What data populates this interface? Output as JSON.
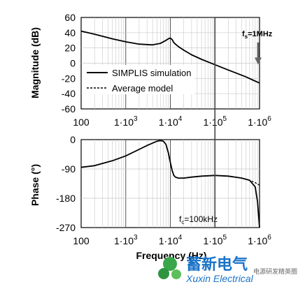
{
  "chart_data": [
    {
      "type": "line",
      "ylabel": "Magnitude (dB)",
      "xscale": "log",
      "xlim": [
        100,
        1000000
      ],
      "ylim": [
        -60,
        60
      ],
      "yticks": [
        "60",
        "40",
        "20",
        "0",
        "-20",
        "-40",
        "-60"
      ],
      "xticks": [
        {
          "base": "100",
          "exp": ""
        },
        {
          "base": "1·10",
          "exp": "3"
        },
        {
          "base": "1·10",
          "exp": "4"
        },
        {
          "base": "1·10",
          "exp": "5"
        },
        {
          "base": "1·10",
          "exp": "6"
        }
      ],
      "grid": true,
      "legend": "top-right",
      "series": [
        {
          "name": "SIMPLIS simulation",
          "x": [
            100,
            200,
            500,
            1000,
            2000,
            4000,
            6000,
            8000,
            9000,
            10000,
            11000,
            12000,
            13000,
            15000,
            20000,
            30000,
            50000,
            100000,
            200000,
            500000,
            700000,
            1000000
          ],
          "y": [
            42,
            38,
            32,
            28,
            25,
            24,
            26,
            30,
            32,
            33,
            31,
            27,
            25,
            22,
            17,
            11,
            5,
            -2,
            -9,
            -18,
            -22,
            -26
          ]
        },
        {
          "name": "Average model",
          "x": [
            100,
            200,
            500,
            1000,
            2000,
            4000,
            6000,
            8000,
            9000,
            10000,
            11000,
            12000,
            13000,
            15000,
            20000,
            30000,
            50000,
            100000,
            200000,
            500000,
            700000,
            1000000
          ],
          "y": [
            42,
            38,
            32,
            28,
            25,
            24,
            26,
            30,
            32,
            33,
            31,
            27,
            25,
            22,
            17,
            11,
            5,
            -2,
            -9,
            -18,
            -22,
            -26
          ]
        }
      ],
      "annotation": {
        "label_main": "f",
        "label_sub": "s",
        "label_tail": "=1MHz",
        "x": 1000000,
        "y_from": 40,
        "y_to": 0
      }
    },
    {
      "type": "line",
      "xlabel": "Frequency (Hz)",
      "ylabel": "Phase (°)",
      "xscale": "log",
      "xlim": [
        100,
        1000000
      ],
      "ylim": [
        -270,
        0
      ],
      "yticks": [
        "0",
        "-90",
        "-180",
        "-270"
      ],
      "xticks": [
        {
          "base": "100",
          "exp": ""
        },
        {
          "base": "1·10",
          "exp": "3"
        },
        {
          "base": "1·10",
          "exp": "4"
        },
        {
          "base": "1·10",
          "exp": "5"
        },
        {
          "base": "1·10",
          "exp": "6"
        }
      ],
      "grid": true,
      "series": [
        {
          "name": "SIMPLIS simulation",
          "x": [
            100,
            200,
            500,
            1000,
            2000,
            3000,
            5000,
            6000,
            7000,
            8000,
            9000,
            10000,
            11000,
            12000,
            13000,
            15000,
            20000,
            30000,
            50000,
            100000,
            200000,
            400000,
            600000,
            800000,
            900000,
            1000000
          ],
          "y": [
            -85,
            -80,
            -65,
            -50,
            -30,
            -18,
            -5,
            -3,
            -5,
            -15,
            -40,
            -70,
            -95,
            -110,
            -115,
            -118,
            -118,
            -115,
            -112,
            -110,
            -112,
            -118,
            -125,
            -145,
            -190,
            -270
          ]
        },
        {
          "name": "Average model",
          "x": [
            100,
            200,
            500,
            1000,
            2000,
            3000,
            5000,
            6000,
            7000,
            8000,
            9000,
            10000,
            11000,
            12000,
            13000,
            15000,
            20000,
            30000,
            50000,
            100000,
            200000,
            400000,
            600000,
            800000,
            1000000
          ],
          "y": [
            -85,
            -80,
            -65,
            -50,
            -30,
            -18,
            -5,
            -3,
            -5,
            -15,
            -40,
            -70,
            -95,
            -110,
            -115,
            -118,
            -118,
            -115,
            -112,
            -110,
            -112,
            -118,
            -125,
            -132,
            -140
          ]
        }
      ],
      "annotation": {
        "label_main": "f",
        "label_sub": "c",
        "label_tail": "=100kHz",
        "x": 100000
      }
    }
  ],
  "watermark": {
    "title": "蓄新电气",
    "subtitle": "Xuxin Electrical",
    "small": "电源研发精英圈",
    "color": "#1a73c8"
  }
}
